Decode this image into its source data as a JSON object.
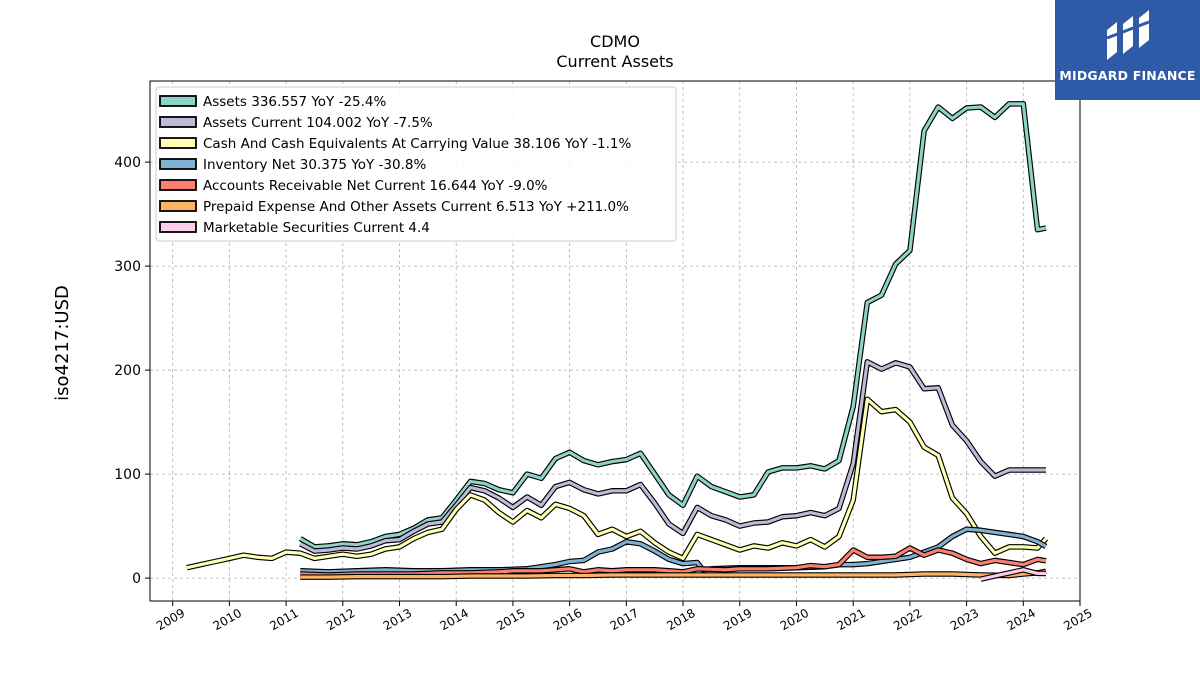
{
  "brand": {
    "name": "MIDGARD FINANCE",
    "icon": "mf-logo-icon",
    "color": "#2f5aa8"
  },
  "chart_data": {
    "type": "line",
    "title": "CDMO",
    "subtitle": "Current  Assets",
    "ylabel": "iso4217:USD",
    "xlabel": "",
    "xlim": [
      2008.6,
      2025.0
    ],
    "ylim": [
      -22,
      478
    ],
    "xticks": [
      2009,
      2010,
      2011,
      2012,
      2013,
      2014,
      2015,
      2016,
      2017,
      2018,
      2019,
      2020,
      2021,
      2022,
      2023,
      2024,
      2025
    ],
    "yticks": [
      0,
      100,
      200,
      300,
      400
    ],
    "grid": true,
    "legend_position": "top-left",
    "series": [
      {
        "name": "Assets  336.557 YoY -25.4%",
        "color": "#8dd3c7",
        "x": [
          2011.25,
          2011.5,
          2011.75,
          2012.0,
          2012.25,
          2012.5,
          2012.75,
          2013.0,
          2013.25,
          2013.5,
          2013.75,
          2014.0,
          2014.25,
          2014.5,
          2014.75,
          2015.0,
          2015.25,
          2015.5,
          2015.75,
          2016.0,
          2016.25,
          2016.5,
          2016.75,
          2017.0,
          2017.25,
          2017.5,
          2017.75,
          2018.0,
          2018.25,
          2018.5,
          2018.75,
          2019.0,
          2019.25,
          2019.5,
          2019.75,
          2020.0,
          2020.25,
          2020.5,
          2020.75,
          2021.0,
          2021.25,
          2021.5,
          2021.75,
          2022.0,
          2022.25,
          2022.5,
          2022.75,
          2023.0,
          2023.25,
          2023.5,
          2023.75,
          2024.0,
          2024.25,
          2024.4
        ],
        "y": [
          38,
          30,
          31,
          33,
          32,
          35,
          40,
          42,
          48,
          56,
          58,
          75,
          93,
          91,
          85,
          82,
          100,
          96,
          115,
          121,
          113,
          109,
          112,
          114,
          120,
          100,
          80,
          70,
          98,
          88,
          83,
          78,
          80,
          102,
          106,
          106,
          108,
          105,
          113,
          165,
          265,
          272,
          302,
          315,
          430,
          453,
          442,
          452,
          453,
          443,
          456,
          456,
          335,
          336.557
        ]
      },
      {
        "name": "Assets Current  104.002 YoY -7.5%",
        "color": "#bebada",
        "x": [
          2011.25,
          2011.5,
          2011.75,
          2012.0,
          2012.25,
          2012.5,
          2012.75,
          2013.0,
          2013.25,
          2013.5,
          2013.75,
          2014.0,
          2014.25,
          2014.5,
          2014.75,
          2015.0,
          2015.25,
          2015.5,
          2015.75,
          2016.0,
          2016.25,
          2016.5,
          2016.75,
          2017.0,
          2017.25,
          2017.5,
          2017.75,
          2018.0,
          2018.25,
          2018.5,
          2018.75,
          2019.0,
          2019.25,
          2019.5,
          2019.75,
          2020.0,
          2020.25,
          2020.5,
          2020.75,
          2021.0,
          2021.25,
          2021.5,
          2021.75,
          2022.0,
          2022.25,
          2022.5,
          2022.75,
          2023.0,
          2023.25,
          2023.5,
          2023.75,
          2024.0,
          2024.25,
          2024.4
        ],
        "y": [
          33,
          26,
          27,
          29,
          28,
          31,
          36,
          37,
          45,
          52,
          54,
          70,
          87,
          84,
          77,
          68,
          78,
          70,
          88,
          92,
          85,
          81,
          84,
          84,
          90,
          72,
          52,
          43,
          68,
          60,
          56,
          50,
          53,
          54,
          59,
          60,
          63,
          60,
          67,
          110,
          208,
          201,
          207,
          203,
          182,
          183,
          147,
          132,
          112,
          98,
          104,
          104,
          104,
          104.002
        ]
      },
      {
        "name": "Cash And Cash Equivalents At Carrying Value  38.106 YoY -1.1%",
        "color": "#ffffb3",
        "x": [
          2009.25,
          2009.5,
          2009.75,
          2010.0,
          2010.25,
          2010.5,
          2010.75,
          2011.0,
          2011.25,
          2011.5,
          2011.75,
          2012.0,
          2012.25,
          2012.5,
          2012.75,
          2013.0,
          2013.25,
          2013.5,
          2013.75,
          2014.0,
          2014.25,
          2014.5,
          2014.75,
          2015.0,
          2015.25,
          2015.5,
          2015.75,
          2016.0,
          2016.25,
          2016.5,
          2016.75,
          2017.0,
          2017.25,
          2017.5,
          2017.75,
          2018.0,
          2018.25,
          2018.5,
          2018.75,
          2019.0,
          2019.25,
          2019.5,
          2019.75,
          2020.0,
          2020.25,
          2020.5,
          2020.75,
          2021.0,
          2021.25,
          2021.5,
          2021.75,
          2022.0,
          2022.25,
          2022.5,
          2022.75,
          2023.0,
          2023.25,
          2023.5,
          2023.75,
          2024.0,
          2024.25,
          2024.4
        ],
        "y": [
          10,
          13,
          16,
          19,
          22,
          20,
          19,
          25,
          24,
          19,
          21,
          23,
          21,
          23,
          28,
          30,
          38,
          44,
          47,
          66,
          80,
          75,
          63,
          54,
          65,
          58,
          71,
          67,
          60,
          42,
          47,
          40,
          45,
          34,
          25,
          19,
          42,
          37,
          32,
          27,
          31,
          29,
          34,
          31,
          37,
          30,
          40,
          75,
          172,
          160,
          162,
          150,
          126,
          118,
          77,
          62,
          40,
          24,
          30,
          30,
          29,
          38.106
        ]
      },
      {
        "name": "Inventory Net  30.375 YoY -30.8%",
        "color": "#80b1d3",
        "x": [
          2011.25,
          2011.75,
          2012.25,
          2012.75,
          2013.25,
          2013.75,
          2014.25,
          2014.75,
          2015.25,
          2015.75,
          2016.0,
          2016.25,
          2016.5,
          2016.75,
          2017.0,
          2017.25,
          2017.5,
          2017.75,
          2018.0,
          2018.25,
          2018.35,
          2018.5,
          2019.0,
          2019.5,
          2020.0,
          2020.5,
          2020.75,
          2021.0,
          2021.25,
          2021.75,
          2022.0,
          2022.25,
          2022.5,
          2022.75,
          2023.0,
          2023.25,
          2023.5,
          2023.75,
          2024.0,
          2024.25,
          2024.4
        ],
        "y": [
          7,
          6,
          7,
          8,
          7,
          7,
          8,
          8,
          9,
          13,
          16,
          17,
          25,
          28,
          35,
          33,
          26,
          18,
          14,
          15,
          8,
          9,
          10,
          10,
          10,
          11,
          13,
          13,
          14,
          18,
          20,
          25,
          30,
          40,
          47,
          46,
          44,
          42,
          40,
          35,
          30.375
        ]
      },
      {
        "name": "Accounts Receivable Net Current  16.644 YoY -9.0%",
        "color": "#fb8072",
        "x": [
          2011.25,
          2011.75,
          2012.25,
          2012.75,
          2013.25,
          2013.75,
          2014.25,
          2014.75,
          2015.0,
          2015.5,
          2016.0,
          2016.25,
          2016.5,
          2016.75,
          2017.0,
          2017.5,
          2017.75,
          2018.0,
          2018.25,
          2018.75,
          2019.0,
          2019.5,
          2020.0,
          2020.25,
          2020.5,
          2020.75,
          2021.0,
          2021.25,
          2021.5,
          2021.75,
          2022.0,
          2022.25,
          2022.5,
          2022.75,
          2023.0,
          2023.25,
          2023.5,
          2023.75,
          2024.0,
          2024.25,
          2024.4
        ],
        "y": [
          4,
          3,
          4,
          4,
          4,
          5,
          5,
          6,
          7,
          7,
          9,
          6,
          8,
          7,
          8,
          8,
          7,
          6,
          9,
          8,
          9,
          9,
          10,
          12,
          11,
          13,
          27,
          20,
          20,
          21,
          29,
          22,
          27,
          24,
          18,
          14,
          17,
          15,
          13,
          18,
          16.644
        ]
      },
      {
        "name": "Prepaid Expense And Other Assets Current  6.513 YoY +211.0%",
        "color": "#fdb462",
        "x": [
          2011.25,
          2011.75,
          2012.25,
          2012.75,
          2013.25,
          2013.75,
          2014.25,
          2014.75,
          2015.25,
          2015.75,
          2016.25,
          2016.75,
          2017.25,
          2017.75,
          2018.25,
          2018.75,
          2019.25,
          2019.75,
          2020.25,
          2020.75,
          2021.25,
          2021.75,
          2022.25,
          2022.75,
          2023.25,
          2023.75,
          2024.0,
          2024.25,
          2024.4
        ],
        "y": [
          1,
          1,
          1.5,
          1.5,
          1.5,
          1.5,
          2,
          2,
          2,
          2.5,
          2.5,
          3,
          3,
          3,
          3,
          3,
          3,
          3,
          3,
          3,
          3,
          3,
          4,
          4,
          3,
          2.5,
          4,
          5,
          6.513
        ]
      },
      {
        "name": "Marketable Securities Current  4.4",
        "color": "#fccde5",
        "x": [
          2023.25,
          2023.5,
          2023.75,
          2024.0,
          2024.25,
          2024.4
        ],
        "y": [
          -1,
          2,
          5,
          8,
          4.5,
          4.4
        ]
      }
    ]
  }
}
